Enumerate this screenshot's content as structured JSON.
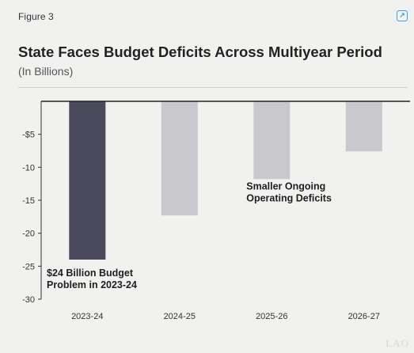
{
  "figure_label": "Figure 3",
  "corner_icon": "share-icon",
  "watermark": "LAO",
  "chart_data": {
    "type": "bar",
    "title": "State Faces Budget Deficits Across Multiyear Period",
    "subtitle": "(In Billions)",
    "xlabel": "",
    "ylabel": "",
    "categories": [
      "2023-24",
      "2024-25",
      "2025-26",
      "2026-27"
    ],
    "values": [
      -24.0,
      -17.3,
      -11.8,
      -7.6
    ],
    "colors": [
      "#4a4a5c",
      "#c9c8cd",
      "#c9c8cd",
      "#c9c8cd"
    ],
    "ylim": [
      -30,
      0
    ],
    "yticks": [
      -5,
      -10,
      -15,
      -20,
      -25,
      -30
    ],
    "ytick_labels": [
      "-$5",
      "-10",
      "-15",
      "-20",
      "-25",
      "-30"
    ],
    "grid": false,
    "annotations": [
      {
        "lines": [
          "$24 Billion Budget",
          "Problem in 2023-24"
        ],
        "category": "2023-24",
        "y": -26.5
      },
      {
        "lines": [
          "Smaller Ongoing",
          "Operating Deficits"
        ],
        "category": "2025-26",
        "y": -13.4
      }
    ]
  }
}
